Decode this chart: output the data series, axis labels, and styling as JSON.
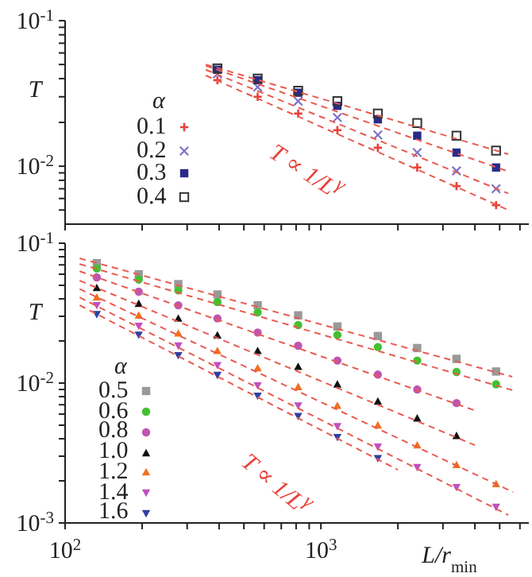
{
  "chart_data": [
    {
      "type": "scatter",
      "ylabel": "T",
      "legend_title": "α",
      "legend": "bottom left",
      "log": "xy",
      "tick_labels": "y",
      "x": [
        394,
        566,
        815,
        1160,
        1670,
        2380,
        3390,
        4840
      ],
      "series": [
        {
          "name": "0.1",
          "color": "#e8413a",
          "marker": "plus",
          "values": [
            0.039,
            0.03,
            0.023,
            0.0177,
            0.0134,
            0.0098,
            0.0073,
            0.0054
          ]
        },
        {
          "name": "0.2",
          "color": "#7a72c8",
          "marker": "cross",
          "values": [
            0.043,
            0.035,
            0.028,
            0.0216,
            0.0164,
            0.0124,
            0.0093,
            0.007
          ]
        },
        {
          "name": "0.3",
          "color": "#2a2a8a",
          "marker": "square",
          "values": [
            0.046,
            0.039,
            0.032,
            0.026,
            0.021,
            0.0162,
            0.0124,
            0.0098
          ]
        },
        {
          "name": "0.4",
          "color": "#333333",
          "marker": "square-open",
          "values": [
            0.047,
            0.04,
            0.033,
            0.028,
            0.023,
            0.0198,
            0.0162,
            0.0128
          ]
        },
        {
          "type": "line",
          "color": "#e85a50",
          "line_style": "dashed",
          "marker": "none",
          "x": [
            355,
            5400
          ],
          "values": [
            0.042,
            0.005
          ]
        },
        {
          "type": "line",
          "color": "#e85a50",
          "line_style": "dashed",
          "marker": "none",
          "x": [
            355,
            5400
          ],
          "values": [
            0.046,
            0.0065
          ]
        },
        {
          "type": "line",
          "color": "#e85a50",
          "line_style": "dashed",
          "marker": "none",
          "x": [
            355,
            5400
          ],
          "values": [
            0.049,
            0.0092
          ]
        },
        {
          "type": "line",
          "color": "#e85a50",
          "line_style": "dashed",
          "marker": "none",
          "x": [
            355,
            5400
          ],
          "values": [
            0.05,
            0.0121
          ]
        }
      ],
      "xlim": [
        100,
        6500
      ],
      "ylim": [
        0.004,
        0.1
      ],
      "xticks": [
        {
          "value": 100,
          "label": null
        },
        {
          "value": 200,
          "label": null
        },
        {
          "value": 300,
          "label": null
        },
        {
          "value": 400,
          "label": null
        },
        {
          "value": 500,
          "label": null
        },
        {
          "value": 600,
          "label": null
        },
        {
          "value": 700,
          "label": null
        },
        {
          "value": 800,
          "label": null
        },
        {
          "value": 900,
          "label": null
        },
        {
          "value": 1000,
          "label": null
        },
        {
          "value": 2000,
          "label": null
        },
        {
          "value": 3000,
          "label": null
        },
        {
          "value": 4000,
          "label": null
        },
        {
          "value": 5000,
          "label": null
        },
        {
          "value": 6000,
          "label": null
        }
      ],
      "yticks": [
        {
          "value": 0.005,
          "label": null
        },
        {
          "value": 0.006,
          "label": null
        },
        {
          "value": 0.007,
          "label": null
        },
        {
          "value": 0.008,
          "label": null
        },
        {
          "value": 0.009,
          "label": null
        },
        {
          "value": 0.01,
          "label": "10$^{-2}$"
        },
        {
          "value": 0.02,
          "label": null
        },
        {
          "value": 0.03,
          "label": null
        },
        {
          "value": 0.04,
          "label": null
        },
        {
          "value": 0.05,
          "label": null
        },
        {
          "value": 0.06,
          "label": null
        },
        {
          "value": 0.07,
          "label": null
        },
        {
          "value": 0.08,
          "label": null
        },
        {
          "value": 0.09,
          "label": null
        },
        {
          "value": 0.1,
          "label": "10$^{-1}$"
        }
      ],
      "annotations": [
        "T ∝ 1/L$^{γ}$"
      ]
    },
    {
      "type": "scatter",
      "ylabel": "T",
      "xlabel": "L/r$_{min}$",
      "legend_title": "α",
      "legend": "bottom left",
      "log": "xy",
      "x": [
        133,
        194,
        277,
        394,
        566,
        815,
        1160,
        1670,
        2380,
        3390,
        4840
      ],
      "series": [
        {
          "name": "0.5",
          "color": "#999999",
          "marker": "square",
          "values": [
            0.072,
            0.06,
            0.051,
            0.043,
            0.036,
            0.0305,
            0.0254,
            0.0217,
            0.0178,
            0.0149,
            0.0121
          ]
        },
        {
          "name": "0.6",
          "color": "#44c030",
          "marker": "circle",
          "values": [
            0.066,
            0.055,
            0.046,
            0.038,
            0.032,
            0.026,
            0.0221,
            0.0181,
            0.0145,
            0.012,
            0.0098
          ]
        },
        {
          "name": "0.8",
          "color": "#c055b0",
          "marker": "circle",
          "values": [
            0.057,
            0.045,
            0.036,
            0.029,
            0.023,
            0.0185,
            0.0145,
            0.0115,
            0.009,
            0.0072,
            null
          ]
        },
        {
          "name": "1.0",
          "color": "#111111",
          "marker": "triangle",
          "values": [
            0.048,
            0.037,
            0.029,
            0.022,
            0.017,
            0.0131,
            0.0098,
            0.0074,
            0.0056,
            0.0042,
            null
          ]
        },
        {
          "name": "1.2",
          "color": "#f07020",
          "marker": "triangle",
          "values": [
            0.041,
            0.0305,
            0.0227,
            0.017,
            0.0128,
            0.0094,
            0.0069,
            0.005,
            0.0036,
            0.0026,
            0.0019
          ]
        },
        {
          "name": "1.4",
          "color": "#c050c0",
          "marker": "triangle-down",
          "values": [
            0.036,
            0.0256,
            0.0185,
            0.0134,
            0.0096,
            0.0069,
            0.0049,
            0.0035,
            0.0025,
            0.0018,
            0.0013
          ]
        },
        {
          "name": "1.6",
          "color": "#3040a0",
          "marker": "triangle-down",
          "values": [
            0.031,
            0.0221,
            0.0158,
            0.0114,
            0.0081,
            0.0058,
            0.0041,
            0.0029,
            null,
            null,
            null
          ]
        },
        {
          "type": "line",
          "color": "#e85a50",
          "line_style": "dashed",
          "marker": "none",
          "x": [
            114,
            5600
          ],
          "values": [
            0.078,
            0.0111
          ]
        },
        {
          "type": "line",
          "color": "#e85a50",
          "line_style": "dashed",
          "marker": "none",
          "x": [
            114,
            5600
          ],
          "values": [
            0.071,
            0.0089
          ]
        },
        {
          "type": "line",
          "color": "#e85a50",
          "line_style": "dashed",
          "marker": "none",
          "x": [
            114,
            4070
          ],
          "values": [
            0.063,
            0.0063
          ]
        },
        {
          "type": "line",
          "color": "#e85a50",
          "line_style": "dashed",
          "marker": "none",
          "x": [
            114,
            4000
          ],
          "values": [
            0.054,
            0.0036
          ]
        },
        {
          "type": "line",
          "color": "#e85a50",
          "line_style": "dashed",
          "marker": "none",
          "x": [
            114,
            5650
          ],
          "values": [
            0.047,
            0.00166
          ]
        },
        {
          "type": "line",
          "color": "#e85a50",
          "line_style": "dashed",
          "marker": "none",
          "x": [
            114,
            5400
          ],
          "values": [
            0.041,
            0.00114
          ]
        },
        {
          "type": "line",
          "color": "#e85a50",
          "line_style": "dashed",
          "marker": "none",
          "x": [
            114,
            2000
          ],
          "values": [
            0.036,
            0.0024
          ]
        }
      ],
      "xlim": [
        100,
        6500
      ],
      "ylim": [
        0.001,
        0.1
      ],
      "xticks": [
        {
          "value": 100,
          "label": "10$^{2}$"
        },
        {
          "value": 200,
          "label": null
        },
        {
          "value": 300,
          "label": null
        },
        {
          "value": 400,
          "label": null
        },
        {
          "value": 500,
          "label": null
        },
        {
          "value": 600,
          "label": null
        },
        {
          "value": 700,
          "label": null
        },
        {
          "value": 800,
          "label": null
        },
        {
          "value": 900,
          "label": null
        },
        {
          "value": 1000,
          "label": "10$^{3}$"
        },
        {
          "value": 2000,
          "label": null
        },
        {
          "value": 3000,
          "label": null
        },
        {
          "value": 4000,
          "label": null
        },
        {
          "value": 5000,
          "label": null
        },
        {
          "value": 6000,
          "label": null
        }
      ],
      "yticks": [
        {
          "value": 0.001,
          "label": "10$^{-3}$"
        },
        {
          "value": 0.002,
          "label": null
        },
        {
          "value": 0.003,
          "label": null
        },
        {
          "value": 0.004,
          "label": null
        },
        {
          "value": 0.005,
          "label": null
        },
        {
          "value": 0.006,
          "label": null
        },
        {
          "value": 0.007,
          "label": null
        },
        {
          "value": 0.008,
          "label": null
        },
        {
          "value": 0.009,
          "label": null
        },
        {
          "value": 0.01,
          "label": "10$^{-2}$"
        },
        {
          "value": 0.02,
          "label": null
        },
        {
          "value": 0.03,
          "label": null
        },
        {
          "value": 0.04,
          "label": null
        },
        {
          "value": 0.05,
          "label": null
        },
        {
          "value": 0.06,
          "label": null
        },
        {
          "value": 0.07,
          "label": null
        },
        {
          "value": 0.08,
          "label": null
        },
        {
          "value": 0.09,
          "label": null
        },
        {
          "value": 0.1,
          "label": "10$^{-1}$"
        }
      ],
      "annotations": [
        "T ∝ 1/L$^{γ}$"
      ]
    }
  ]
}
